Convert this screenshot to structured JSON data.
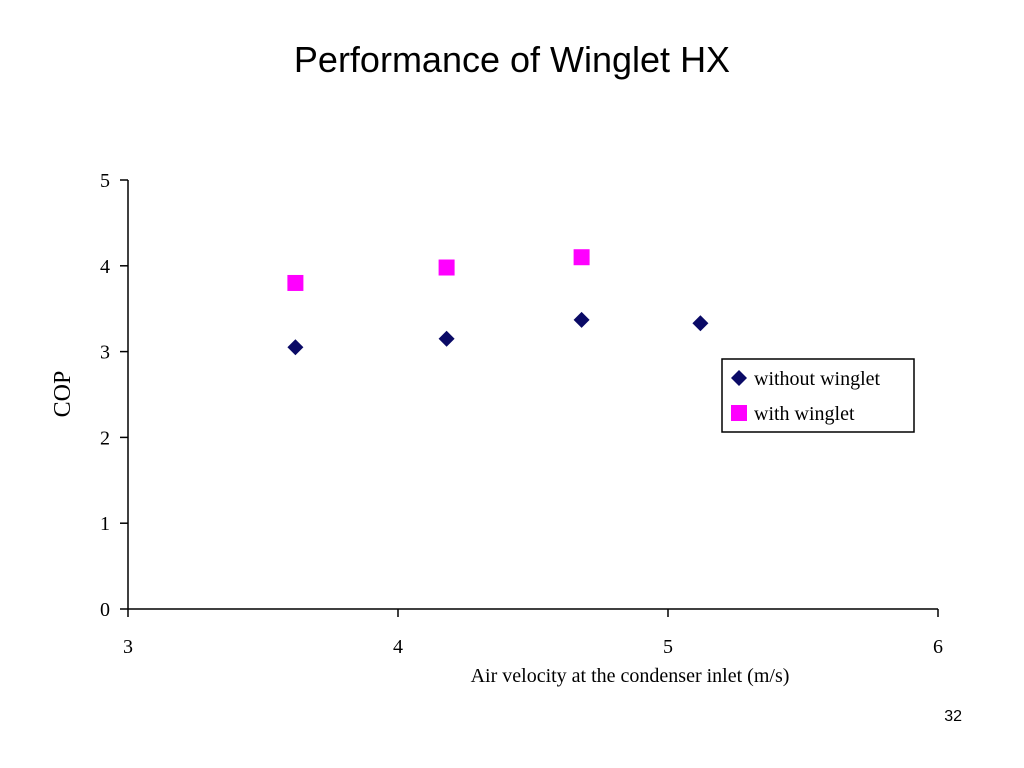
{
  "slide": {
    "title": "Performance of Winglet HX",
    "page_number": "32"
  },
  "colors": {
    "without_winglet": "#0a0a66",
    "with_winglet": "#ff00ff",
    "axis": "#000000",
    "background": "#ffffff"
  },
  "chart_data": {
    "type": "scatter",
    "title": "",
    "xlabel": "Air velocity at the condenser inlet (m/s)",
    "ylabel": "COP",
    "xlim": [
      3,
      6
    ],
    "ylim": [
      0,
      5
    ],
    "x_ticks": [
      3,
      4,
      5,
      6
    ],
    "y_ticks": [
      0,
      1,
      2,
      3,
      4,
      5
    ],
    "grid": false,
    "legend_position": "right",
    "series": [
      {
        "name": "without winglet",
        "marker": "diamond",
        "color": "#0a0a66",
        "points": [
          {
            "x": 3.62,
            "y": 3.05
          },
          {
            "x": 4.18,
            "y": 3.15
          },
          {
            "x": 4.68,
            "y": 3.37
          },
          {
            "x": 5.12,
            "y": 3.33
          }
        ]
      },
      {
        "name": "with winglet",
        "marker": "square",
        "color": "#ff00ff",
        "points": [
          {
            "x": 3.62,
            "y": 3.8
          },
          {
            "x": 4.18,
            "y": 3.98
          },
          {
            "x": 4.68,
            "y": 4.1
          }
        ]
      }
    ]
  }
}
